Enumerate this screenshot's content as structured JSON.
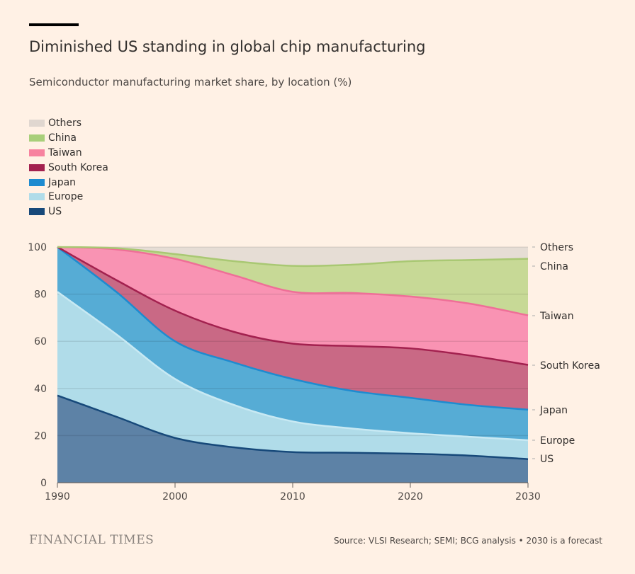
{
  "title": "Diminished US standing in global chip manufacturing",
  "subtitle": "Semiconductor manufacturing market share, by location (%)",
  "brand": "FINANCIAL TIMES",
  "source": "Source: VLSI Research; SEMI; BCG analysis • 2030 is a forecast",
  "chart_data": {
    "type": "area",
    "stacked": true,
    "title": "Diminished US standing in global chip manufacturing",
    "subtitle": "Semiconductor manufacturing market share, by location (%)",
    "xlabel": "",
    "ylabel": "",
    "x": [
      1990,
      1995,
      2000,
      2005,
      2010,
      2015,
      2020,
      2025,
      2030
    ],
    "xlim": [
      1990,
      2030
    ],
    "ylim": [
      0,
      100
    ],
    "xticks": [
      "1990",
      "2000",
      "2010",
      "2020",
      "2030"
    ],
    "yticks": [
      "0",
      "20",
      "40",
      "60",
      "80",
      "100"
    ],
    "grid": true,
    "legend_position": "top-left",
    "series": [
      {
        "name": "US",
        "color": "#5d82a6",
        "line": "#17497a",
        "values": [
          37,
          28,
          19,
          15,
          13,
          12.7,
          12.3,
          11.5,
          10
        ]
      },
      {
        "name": "Europe",
        "color": "#b0dce9",
        "line": "#c8e9f3",
        "values": [
          44,
          35,
          25,
          18,
          13,
          10.3,
          8.7,
          8,
          8
        ]
      },
      {
        "name": "Japan",
        "color": "#56acd5",
        "line": "#1e8bd0",
        "values": [
          19,
          18,
          16,
          18,
          18,
          16,
          15,
          13.5,
          13
        ]
      },
      {
        "name": "South Korea",
        "color": "#c96985",
        "line": "#a3214f",
        "values": [
          0,
          5,
          13,
          13,
          15,
          19,
          21,
          21,
          19
        ]
      },
      {
        "name": "Taiwan",
        "color": "#f993b3",
        "line": "#ef6f98",
        "values": [
          0,
          13,
          22,
          24,
          22,
          22.5,
          22,
          22,
          21
        ]
      },
      {
        "name": "China",
        "color": "#c7d996",
        "line": "#a9c873",
        "values": [
          0,
          0.5,
          2,
          6,
          11,
          12,
          15,
          18.5,
          24
        ]
      },
      {
        "name": "Others",
        "color": "#e6ddd5",
        "line": "#e6ddd5",
        "values": [
          0,
          0.5,
          3,
          6,
          8,
          7.5,
          6,
          5.5,
          5
        ]
      }
    ],
    "legend_order": [
      "Others",
      "China",
      "Taiwan",
      "South Korea",
      "Japan",
      "Europe",
      "US"
    ]
  }
}
